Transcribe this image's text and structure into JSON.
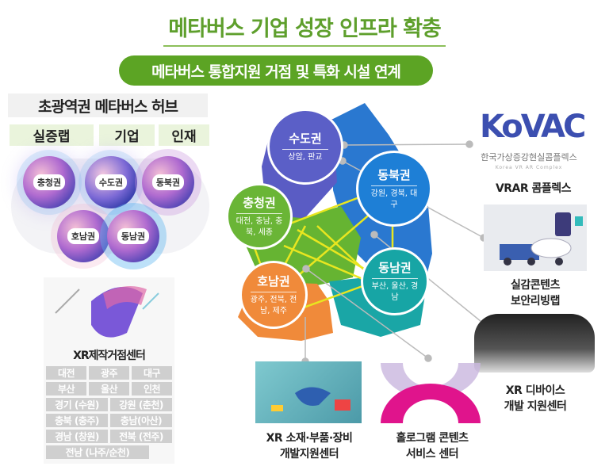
{
  "header": {
    "title": "메타버스 기업 성장 인프라 확충",
    "subtitle": "메타버스 통합지원 거점 및 특화 시설 연계"
  },
  "hub": {
    "title": "초광역권 메타버스 허브",
    "categories": [
      "실증랩",
      "기업",
      "인재"
    ],
    "regions": [
      "충청권",
      "수도권",
      "동북권",
      "호남권",
      "동남권"
    ]
  },
  "xr_center": {
    "title": "XR제작거점센터",
    "cells": [
      [
        "대전",
        "광주",
        "대구"
      ],
      [
        "부산",
        "울산",
        "인천"
      ],
      [
        "경기 (수원)",
        "강원 (춘천)"
      ],
      [
        "충북 (충주)",
        "충남(아산)"
      ],
      [
        "경남 (창원)",
        "전북 (전주)"
      ],
      [
        "전남 (나주/순천)"
      ]
    ]
  },
  "map": {
    "regions": [
      {
        "name": "수도권",
        "detail": "상암, 판교",
        "color": "#5b5fc7"
      },
      {
        "name": "충청권",
        "detail": "대전, 충남, 충북, 세종",
        "color": "#6ab536"
      },
      {
        "name": "동북권",
        "detail": "강원, 경북, 대구",
        "color": "#1e7fd6"
      },
      {
        "name": "동남권",
        "detail": "부산, 울산, 경남",
        "color": "#17a5a5"
      },
      {
        "name": "호남권",
        "detail": "광주, 전북, 전남, 제주",
        "color": "#f08a3a"
      }
    ],
    "link_color": "#e8e620"
  },
  "facilities": {
    "kovac_logo": "KoVAC",
    "kovac_name": "한국가상증강현실콤플렉스",
    "kovac_en": "Korea VR AR Complex",
    "vrar": "VRAR 콤플렉스",
    "security_lab": [
      "실감콘텐츠",
      "보안리빙랩"
    ],
    "device": [
      "XR 디바이스",
      "개발 지원센터"
    ],
    "materials": [
      "XR 소재·부품·장비",
      "개발지원센터"
    ],
    "hologram": [
      "홀로그램 콘텐츠",
      "서비스 센터"
    ]
  }
}
